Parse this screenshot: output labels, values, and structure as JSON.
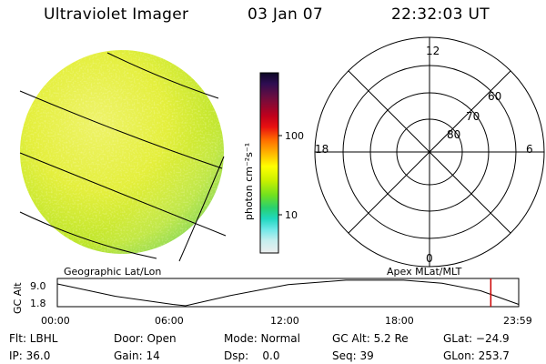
{
  "header": {
    "instrument": "Ultraviolet Imager",
    "date": "03 Jan 07",
    "time": "22:32:03 UT"
  },
  "colorbar": {
    "unit_label": "photon cm⁻²s⁻¹",
    "ticks": [
      "100",
      "10"
    ],
    "scale": "log"
  },
  "polar_plot": {
    "clock_labels": [
      "12",
      "18",
      "6",
      "0"
    ],
    "lat_labels": [
      "60",
      "70",
      "80"
    ]
  },
  "map": {
    "left_label": "Geographic Lat/Lon",
    "right_label": "Apex MLat/MLT"
  },
  "altitude_plot": {
    "ylabel": "GC Alt",
    "y_ticks": [
      "9.0",
      "1.8"
    ],
    "x_ticks": [
      "00:00",
      "06:00",
      "12:00",
      "18:00",
      "23:59"
    ],
    "marker_color": "#cc0000"
  },
  "chart_data": {
    "type": "line",
    "title": "",
    "xlabel": "",
    "ylabel": "GC Alt",
    "x": [
      "00:00",
      "03:00",
      "06:00",
      "06:40",
      "09:00",
      "12:00",
      "15:00",
      "18:00",
      "20:00",
      "22:00",
      "23:59"
    ],
    "series": [
      {
        "values": [
          8.2,
          4.6,
          2.2,
          1.8,
          4.8,
          8.0,
          9.3,
          9.3,
          8.4,
          6.2,
          2.2
        ]
      }
    ],
    "ylim": [
      1.8,
      9.0
    ],
    "current_time_marker": "22:32"
  },
  "status": {
    "rows": [
      [
        "Flt: LBHL",
        "Door: Open",
        "Mode: Normal",
        "GC Alt: 5.2 Re",
        "GLat: −24.9"
      ],
      [
        "IP: 36.0",
        "Gain: 14",
        "Dsp:    0.0",
        "Seq: 39",
        "GLon: 253.7"
      ]
    ]
  }
}
